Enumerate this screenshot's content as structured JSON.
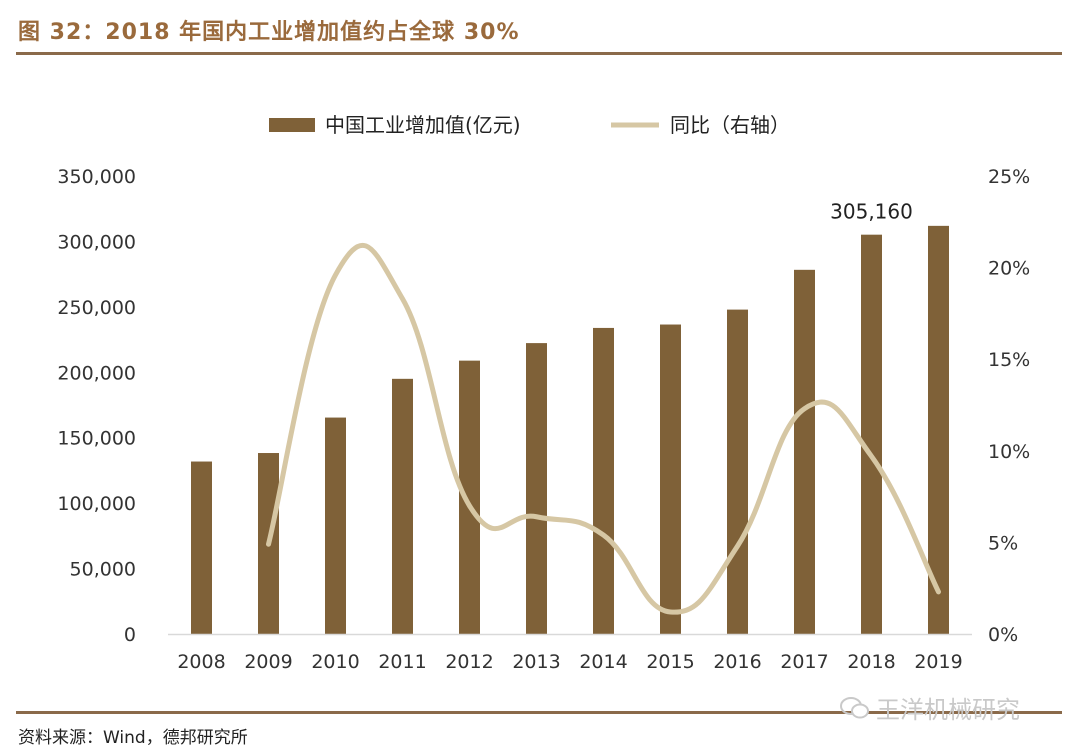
{
  "header": {
    "title": "图 32：2018 年国内工业增加值约占全球 30%"
  },
  "footer": {
    "source": "资料来源：Wind，德邦研究所",
    "watermark": "王洋机械研究",
    "watermark_icon": "wechat-icon"
  },
  "colors": {
    "bar": "#7f6138",
    "line": "#d6c7a4",
    "rule": "#8a6a4a",
    "title": "#9a6a3c"
  },
  "chart_data": {
    "type": "bar",
    "categories": [
      "2008",
      "2009",
      "2010",
      "2011",
      "2012",
      "2013",
      "2014",
      "2015",
      "2016",
      "2017",
      "2018",
      "2019"
    ],
    "series": [
      {
        "name": "中国工业增加值(亿元)",
        "type": "bar",
        "axis": "left",
        "values": [
          131800,
          138300,
          165400,
          195000,
          208900,
          222300,
          233900,
          236500,
          247900,
          278300,
          305160,
          311900
        ]
      },
      {
        "name": "同比（右轴）",
        "type": "line",
        "axis": "right",
        "smooth": true,
        "values": [
          null,
          0.049,
          0.196,
          0.183,
          0.07,
          0.064,
          0.054,
          0.012,
          0.048,
          0.123,
          0.097,
          0.023
        ]
      }
    ],
    "y_left": {
      "ylim": [
        0,
        350000
      ],
      "ticks": [
        0,
        50000,
        100000,
        150000,
        200000,
        250000,
        300000,
        350000
      ],
      "tick_labels": [
        "0",
        "50,000",
        "100,000",
        "150,000",
        "200,000",
        "250,000",
        "300,000",
        "350,000"
      ]
    },
    "y_right": {
      "ylim": [
        0,
        0.25
      ],
      "ticks": [
        0,
        0.05,
        0.1,
        0.15,
        0.2,
        0.25
      ],
      "tick_labels": [
        "0%",
        "5%",
        "10%",
        "15%",
        "20%",
        "25%"
      ]
    },
    "annotations": [
      {
        "category": "2018",
        "series": 0,
        "text": "305,160"
      }
    ],
    "legend": {
      "position": "top"
    },
    "grid": false
  }
}
